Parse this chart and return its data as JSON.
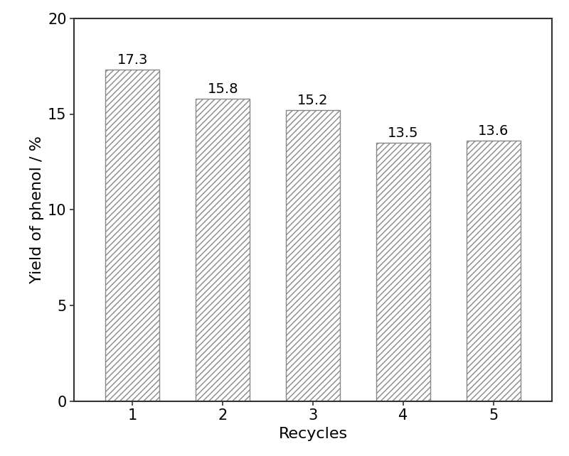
{
  "categories": [
    "1",
    "2",
    "3",
    "4",
    "5"
  ],
  "values": [
    17.3,
    15.8,
    15.2,
    13.5,
    13.6
  ],
  "xlabel": "Recycles",
  "ylabel": "Yield of phenol / %",
  "ylim": [
    0,
    20
  ],
  "yticks": [
    0,
    5,
    10,
    15,
    20
  ],
  "bar_color": "#ffffff",
  "bar_edge_color": "#888888",
  "hatch_pattern": "////",
  "bar_width": 0.6,
  "label_fontsize": 16,
  "tick_fontsize": 15,
  "value_fontsize": 14,
  "background_color": "#ffffff",
  "spine_color": "#333333",
  "spine_linewidth": 1.5
}
